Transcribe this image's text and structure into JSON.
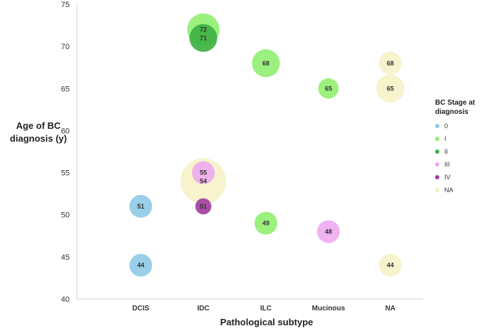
{
  "chart_data": {
    "type": "scatter",
    "subtype": "bubble",
    "categories": [
      "DCIS",
      "IDC",
      "ILC",
      "Mucinous",
      "NA"
    ],
    "xlabel": "Pathological subtype",
    "ylabel": "Age of BC diagnosis (y)",
    "ylim": [
      40,
      75
    ],
    "yticks": [
      40,
      45,
      50,
      55,
      60,
      65,
      70,
      75
    ],
    "grid": false,
    "legend": {
      "title": "BC Stage at diagnosis",
      "placement": "right"
    },
    "series": [
      {
        "name": "0",
        "color": "#8ecae6",
        "points": [
          {
            "category": "DCIS",
            "y": 51,
            "label": "51",
            "size": 1
          },
          {
            "category": "DCIS",
            "y": 44,
            "label": "44",
            "size": 1
          }
        ]
      },
      {
        "name": "I",
        "color": "#90ee70",
        "points": [
          {
            "category": "IDC",
            "y": 72,
            "label": "72",
            "size": 2
          },
          {
            "category": "ILC",
            "y": 68,
            "label": "68",
            "size": 1.5
          },
          {
            "category": "ILC",
            "y": 49,
            "label": "49",
            "size": 1
          },
          {
            "category": "Mucinous",
            "y": 65,
            "label": "65",
            "size": 0.8
          }
        ]
      },
      {
        "name": "II",
        "color": "#3cb043",
        "points": [
          {
            "category": "IDC",
            "y": 71,
            "label": "71",
            "size": 1.5
          }
        ]
      },
      {
        "name": "III",
        "color": "#eeaaee",
        "points": [
          {
            "category": "IDC",
            "y": 55,
            "label": "55",
            "size": 1
          },
          {
            "category": "Mucinous",
            "y": 48,
            "label": "48",
            "size": 1
          }
        ]
      },
      {
        "name": "IV",
        "color": "#a23b9e",
        "points": [
          {
            "category": "IDC",
            "y": 51,
            "label": "51",
            "size": 0.5
          }
        ]
      },
      {
        "name": "NA",
        "color": "#f4f1c4",
        "points": [
          {
            "category": "IDC",
            "y": 54,
            "label": "54",
            "size": 4
          },
          {
            "category": "NA",
            "y": 68,
            "label": "68",
            "size": 1
          },
          {
            "category": "NA",
            "y": 65,
            "label": "65",
            "size": 1.5
          },
          {
            "category": "NA",
            "y": 44,
            "label": "44",
            "size": 1
          }
        ]
      }
    ]
  }
}
